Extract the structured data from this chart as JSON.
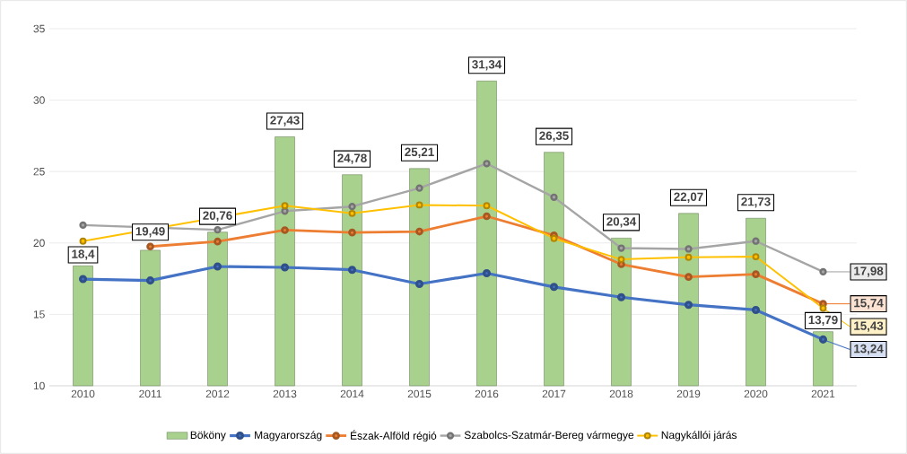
{
  "chart_data": {
    "type": "line",
    "categories": [
      "2010",
      "2011",
      "2012",
      "2013",
      "2014",
      "2015",
      "2016",
      "2017",
      "2018",
      "2019",
      "2020",
      "2021"
    ],
    "series": [
      {
        "name": "Bököny",
        "type": "bar",
        "color": "#a9d18e",
        "values": [
          18.4,
          19.49,
          20.76,
          27.43,
          24.78,
          25.21,
          31.34,
          26.35,
          20.34,
          22.07,
          21.73,
          13.79
        ],
        "value_labels": [
          "18,4",
          "19,49",
          "20,76",
          "27,43",
          "24,78",
          "25,21",
          "31,34",
          "26,35",
          "20,34",
          "22,07",
          "21,73",
          "13,79"
        ]
      },
      {
        "name": "Magyarország",
        "color": "#4472c4",
        "values": [
          17.47,
          17.37,
          18.35,
          18.29,
          18.12,
          17.13,
          17.88,
          16.92,
          16.2,
          15.67,
          15.31,
          13.24
        ],
        "value_labels": [
          null,
          null,
          null,
          null,
          null,
          null,
          null,
          null,
          null,
          null,
          null,
          "13,24"
        ]
      },
      {
        "name": "Észak-Alföld régió",
        "color": "#ed7d31",
        "values": [
          null,
          19.75,
          20.1,
          20.9,
          20.73,
          20.8,
          21.87,
          20.53,
          18.51,
          17.62,
          17.81,
          15.74
        ],
        "value_labels": [
          null,
          null,
          null,
          null,
          null,
          null,
          null,
          null,
          null,
          null,
          null,
          "15,74"
        ]
      },
      {
        "name": "Szabolcs-Szatmár-Bereg vármegye",
        "color": "#a5a5a5",
        "values": [
          21.25,
          null,
          20.92,
          22.23,
          22.55,
          23.84,
          25.56,
          23.2,
          19.64,
          19.58,
          20.13,
          17.98
        ],
        "value_labels": [
          null,
          null,
          null,
          null,
          null,
          null,
          null,
          null,
          null,
          null,
          null,
          "17,98"
        ]
      },
      {
        "name": "Nagykállói járás",
        "color": "#ffc000",
        "values": [
          20.13,
          null,
          null,
          22.61,
          22.07,
          22.66,
          22.61,
          20.32,
          18.85,
          19.0,
          19.04,
          15.43
        ],
        "value_labels": [
          null,
          null,
          null,
          null,
          null,
          null,
          null,
          null,
          null,
          null,
          null,
          "15,43"
        ]
      }
    ],
    "ylim": [
      10,
      35
    ],
    "yticks": [
      10,
      15,
      20,
      25,
      30,
      35
    ],
    "grid": "y",
    "legend": "bottom",
    "marker": "circle",
    "line_style": "solid"
  }
}
